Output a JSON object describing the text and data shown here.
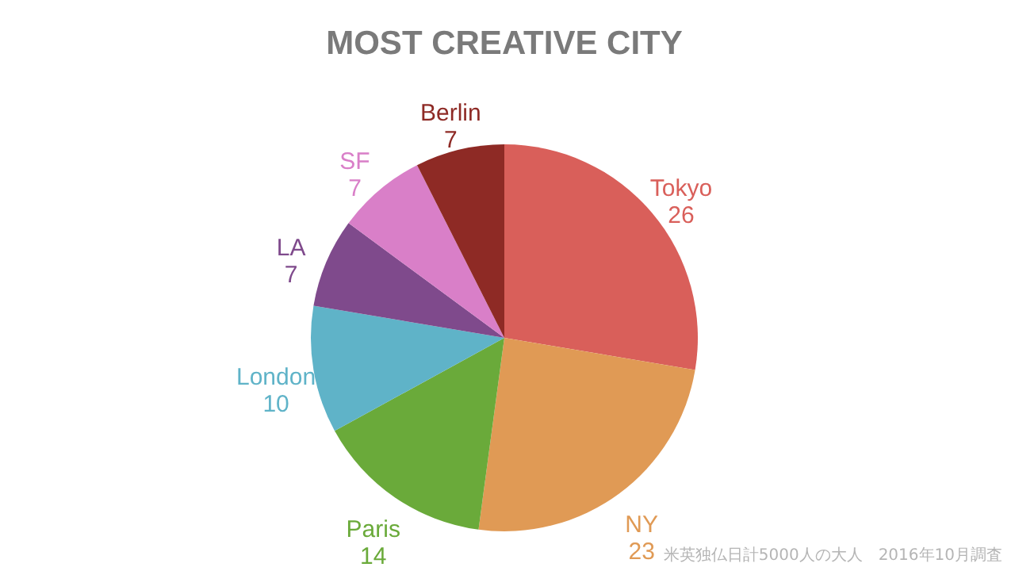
{
  "chart_data": {
    "type": "pie",
    "title": "MOST CREATIVE CITY",
    "categories": [
      "Tokyo",
      "NY",
      "Paris",
      "London",
      "LA",
      "SF",
      "Berlin"
    ],
    "values": [
      26,
      23,
      14,
      10,
      7,
      7,
      7
    ],
    "colors": [
      "#d95f5a",
      "#e09a55",
      "#6aaa3a",
      "#5fb3c8",
      "#7f4a8c",
      "#d97fc8",
      "#8e2a25"
    ],
    "data_labels": true,
    "annotations": [
      "米英独仏日計5000人の大人　2016年10月調査"
    ]
  }
}
